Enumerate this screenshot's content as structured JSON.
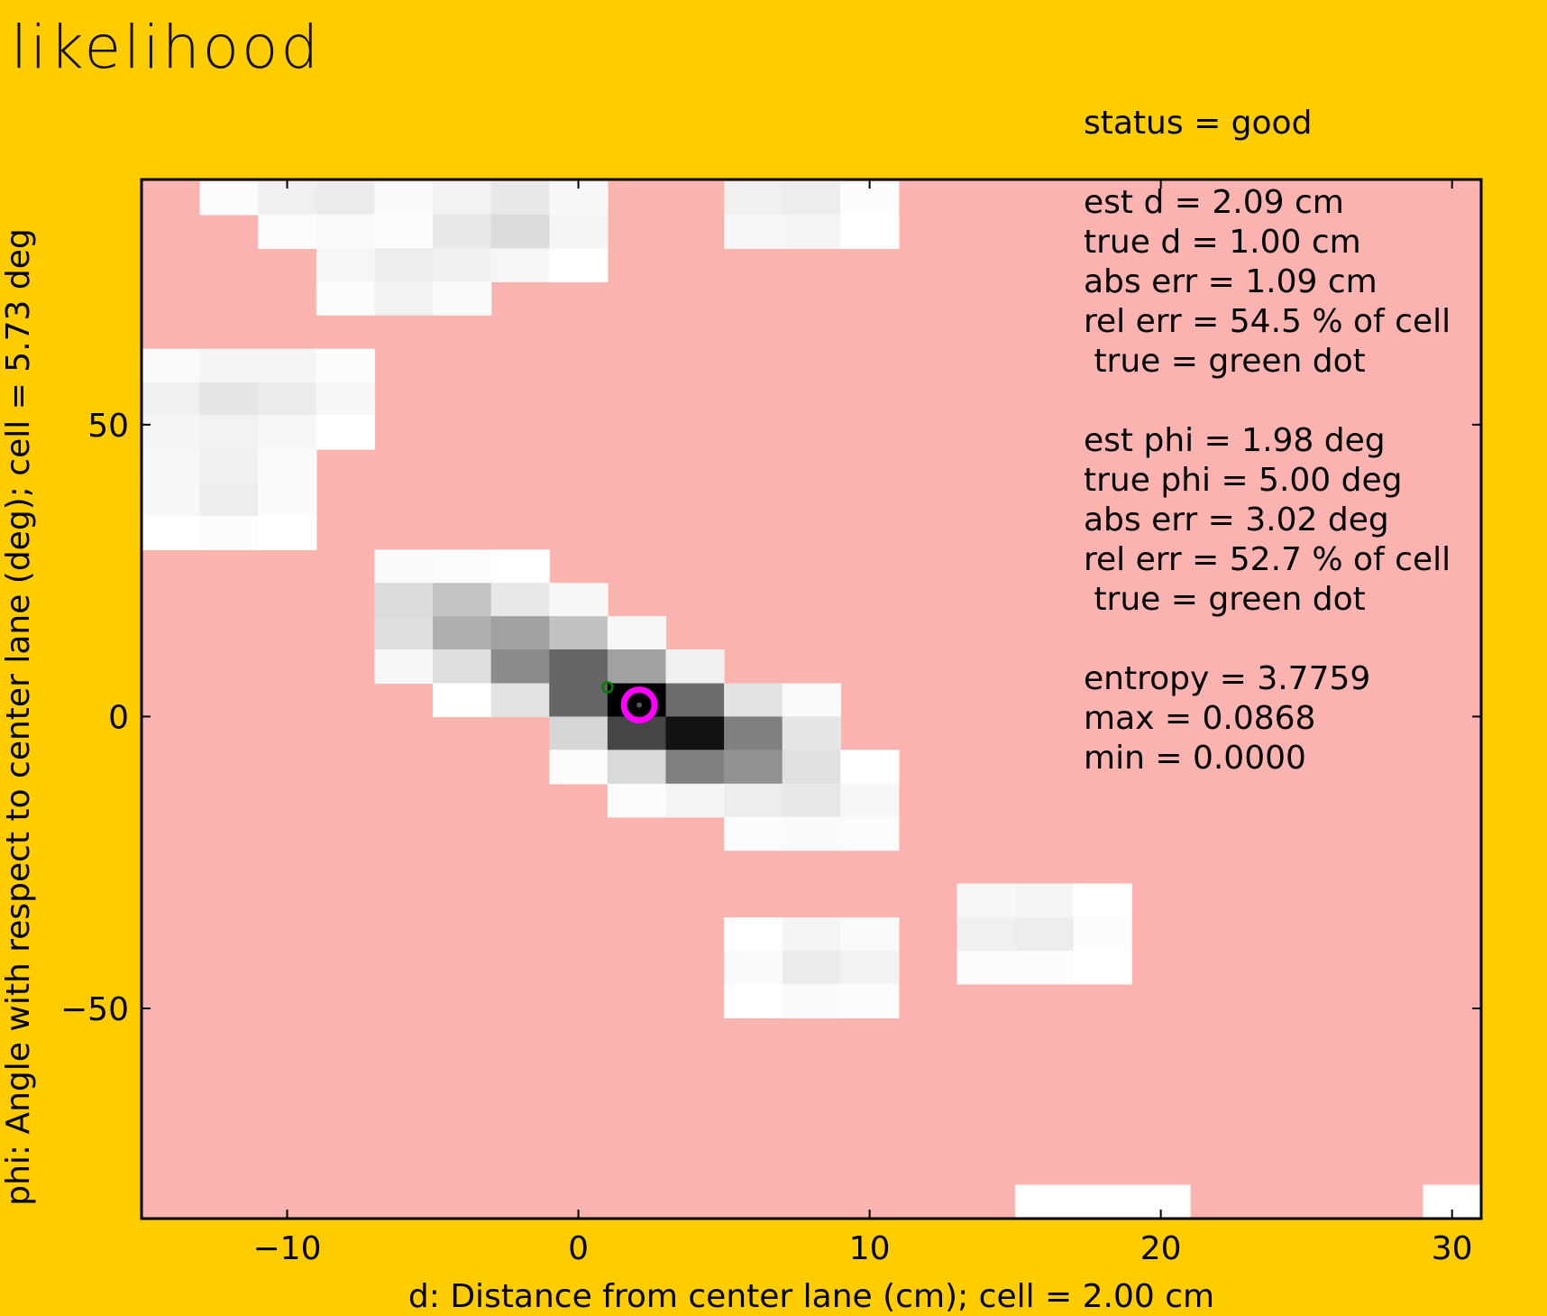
{
  "title": "likelihood",
  "status_line": "status = good",
  "info_lines": [
    "est d = 2.09 cm",
    "true d = 1.00 cm",
    "abs err = 1.09 cm",
    "rel err = 54.5 % of cell",
    " true = green dot",
    "",
    "est phi = 1.98 deg",
    "true phi = 5.00 deg",
    "abs err = 3.02 deg",
    "rel err = 52.7 % of cell",
    " true = green dot",
    "",
    "entropy = 3.7759",
    "max = 0.0868",
    "min = 0.0000"
  ],
  "colors": {
    "background": "#ffcc00",
    "plot_background": "#fab3ae",
    "estimate_marker": "#ff00ff",
    "true_marker": "#008000"
  },
  "chart_data": {
    "type": "heatmap",
    "xlabel": "d: Distance from center lane (cm); cell = 2.00 cm",
    "ylabel": "phi: Angle with respect to center lane (deg); cell = 5.73 deg",
    "xlim": [
      -15,
      31
    ],
    "ylim": [
      -86,
      92
    ],
    "xticks": [
      -10,
      0,
      10,
      20,
      30
    ],
    "xtick_labels": [
      "−10",
      "0",
      "10",
      "20",
      "30"
    ],
    "yticks": [
      50,
      0,
      -50
    ],
    "ytick_labels": [
      "50",
      "0",
      "−50"
    ],
    "cell_width": 2.0,
    "cell_height": 5.73,
    "cells": [
      {
        "x0": -13,
        "x1": -11,
        "y0": 86.0,
        "y1": 91.7,
        "v": 0.01
      },
      {
        "x0": -11,
        "x1": -9,
        "y0": 86.0,
        "y1": 91.7,
        "v": 0.06
      },
      {
        "x0": -9,
        "x1": -7,
        "y0": 86.0,
        "y1": 91.7,
        "v": 0.08
      },
      {
        "x0": -7,
        "x1": -5,
        "y0": 86.0,
        "y1": 91.7,
        "v": 0.02
      },
      {
        "x0": -5,
        "x1": -3,
        "y0": 86.0,
        "y1": 91.7,
        "v": 0.05
      },
      {
        "x0": -3,
        "x1": -1,
        "y0": 86.0,
        "y1": 91.7,
        "v": 0.09
      },
      {
        "x0": -1,
        "x1": 1,
        "y0": 86.0,
        "y1": 91.7,
        "v": 0.03
      },
      {
        "x0": 5,
        "x1": 7,
        "y0": 86.0,
        "y1": 91.7,
        "v": 0.06
      },
      {
        "x0": 7,
        "x1": 9,
        "y0": 86.0,
        "y1": 91.7,
        "v": 0.07
      },
      {
        "x0": 9,
        "x1": 11,
        "y0": 86.0,
        "y1": 91.7,
        "v": 0.01
      },
      {
        "x0": -11,
        "x1": -9,
        "y0": 80.2,
        "y1": 86.0,
        "v": 0.01
      },
      {
        "x0": -9,
        "x1": -7,
        "y0": 80.2,
        "y1": 86.0,
        "v": 0.02
      },
      {
        "x0": -7,
        "x1": -5,
        "y0": 80.2,
        "y1": 86.0,
        "v": 0.01
      },
      {
        "x0": -5,
        "x1": -3,
        "y0": 80.2,
        "y1": 86.0,
        "v": 0.09
      },
      {
        "x0": -3,
        "x1": -1,
        "y0": 80.2,
        "y1": 86.0,
        "v": 0.14
      },
      {
        "x0": -1,
        "x1": 1,
        "y0": 80.2,
        "y1": 86.0,
        "v": 0.04
      },
      {
        "x0": 5,
        "x1": 7,
        "y0": 80.2,
        "y1": 86.0,
        "v": 0.03
      },
      {
        "x0": 7,
        "x1": 9,
        "y0": 80.2,
        "y1": 86.0,
        "v": 0.04
      },
      {
        "x0": 9,
        "x1": 11,
        "y0": 80.2,
        "y1": 86.0,
        "v": 0.0
      },
      {
        "x0": -9,
        "x1": -7,
        "y0": 74.5,
        "y1": 80.2,
        "v": 0.03
      },
      {
        "x0": -7,
        "x1": -5,
        "y0": 74.5,
        "y1": 80.2,
        "v": 0.07
      },
      {
        "x0": -5,
        "x1": -3,
        "y0": 74.5,
        "y1": 80.2,
        "v": 0.06
      },
      {
        "x0": -3,
        "x1": -1,
        "y0": 74.5,
        "y1": 80.2,
        "v": 0.03
      },
      {
        "x0": -1,
        "x1": 1,
        "y0": 74.5,
        "y1": 80.2,
        "v": 0.0
      },
      {
        "x0": -9,
        "x1": -7,
        "y0": 68.8,
        "y1": 74.5,
        "v": 0.01
      },
      {
        "x0": -7,
        "x1": -5,
        "y0": 68.8,
        "y1": 74.5,
        "v": 0.05
      },
      {
        "x0": -5,
        "x1": -3,
        "y0": 68.8,
        "y1": 74.5,
        "v": 0.02
      },
      {
        "x0": -15,
        "x1": -13,
        "y0": 57.3,
        "y1": 63.0,
        "v": 0.02
      },
      {
        "x0": -13,
        "x1": -11,
        "y0": 57.3,
        "y1": 63.0,
        "v": 0.04
      },
      {
        "x0": -11,
        "x1": -9,
        "y0": 57.3,
        "y1": 63.0,
        "v": 0.04
      },
      {
        "x0": -9,
        "x1": -7,
        "y0": 57.3,
        "y1": 63.0,
        "v": 0.01
      },
      {
        "x0": -15,
        "x1": -13,
        "y0": 51.6,
        "y1": 57.3,
        "v": 0.06
      },
      {
        "x0": -13,
        "x1": -11,
        "y0": 51.6,
        "y1": 57.3,
        "v": 0.1
      },
      {
        "x0": -11,
        "x1": -9,
        "y0": 51.6,
        "y1": 57.3,
        "v": 0.08
      },
      {
        "x0": -9,
        "x1": -7,
        "y0": 51.6,
        "y1": 57.3,
        "v": 0.03
      },
      {
        "x0": -15,
        "x1": -13,
        "y0": 45.8,
        "y1": 51.6,
        "v": 0.04
      },
      {
        "x0": -13,
        "x1": -11,
        "y0": 45.8,
        "y1": 51.6,
        "v": 0.05
      },
      {
        "x0": -11,
        "x1": -9,
        "y0": 45.8,
        "y1": 51.6,
        "v": 0.03
      },
      {
        "x0": -9,
        "x1": -7,
        "y0": 45.8,
        "y1": 51.6,
        "v": 0.0
      },
      {
        "x0": -15,
        "x1": -13,
        "y0": 40.1,
        "y1": 45.8,
        "v": 0.03
      },
      {
        "x0": -13,
        "x1": -11,
        "y0": 40.1,
        "y1": 45.8,
        "v": 0.06
      },
      {
        "x0": -11,
        "x1": -9,
        "y0": 40.1,
        "y1": 45.8,
        "v": 0.02
      },
      {
        "x0": -15,
        "x1": -13,
        "y0": 34.4,
        "y1": 40.1,
        "v": 0.03
      },
      {
        "x0": -13,
        "x1": -11,
        "y0": 34.4,
        "y1": 40.1,
        "v": 0.07
      },
      {
        "x0": -11,
        "x1": -9,
        "y0": 34.4,
        "y1": 40.1,
        "v": 0.02
      },
      {
        "x0": -15,
        "x1": -13,
        "y0": 28.6,
        "y1": 34.4,
        "v": 0.0
      },
      {
        "x0": -13,
        "x1": -11,
        "y0": 28.6,
        "y1": 34.4,
        "v": 0.01
      },
      {
        "x0": -11,
        "x1": -9,
        "y0": 28.6,
        "y1": 34.4,
        "v": 0.0
      },
      {
        "x0": -7,
        "x1": -5,
        "y0": 22.9,
        "y1": 28.6,
        "v": 0.02
      },
      {
        "x0": -5,
        "x1": -3,
        "y0": 22.9,
        "y1": 28.6,
        "v": 0.01
      },
      {
        "x0": -3,
        "x1": -1,
        "y0": 22.9,
        "y1": 28.6,
        "v": 0.0
      },
      {
        "x0": -7,
        "x1": -5,
        "y0": 17.2,
        "y1": 22.9,
        "v": 0.14
      },
      {
        "x0": -5,
        "x1": -3,
        "y0": 17.2,
        "y1": 22.9,
        "v": 0.23
      },
      {
        "x0": -3,
        "x1": -1,
        "y0": 17.2,
        "y1": 22.9,
        "v": 0.09
      },
      {
        "x0": -1,
        "x1": 1,
        "y0": 17.2,
        "y1": 22.9,
        "v": 0.03
      },
      {
        "x0": -7,
        "x1": -5,
        "y0": 11.5,
        "y1": 17.2,
        "v": 0.13
      },
      {
        "x0": -5,
        "x1": -3,
        "y0": 11.5,
        "y1": 17.2,
        "v": 0.31
      },
      {
        "x0": -3,
        "x1": -1,
        "y0": 11.5,
        "y1": 17.2,
        "v": 0.37
      },
      {
        "x0": -1,
        "x1": 1,
        "y0": 11.5,
        "y1": 17.2,
        "v": 0.24
      },
      {
        "x0": 1,
        "x1": 3,
        "y0": 11.5,
        "y1": 17.2,
        "v": 0.03
      },
      {
        "x0": -7,
        "x1": -5,
        "y0": 5.7,
        "y1": 11.5,
        "v": 0.03
      },
      {
        "x0": -5,
        "x1": -3,
        "y0": 5.7,
        "y1": 11.5,
        "v": 0.13
      },
      {
        "x0": -3,
        "x1": -1,
        "y0": 5.7,
        "y1": 11.5,
        "v": 0.45
      },
      {
        "x0": -1,
        "x1": 1,
        "y0": 5.7,
        "y1": 11.5,
        "v": 0.6
      },
      {
        "x0": 1,
        "x1": 3,
        "y0": 5.7,
        "y1": 11.5,
        "v": 0.37
      },
      {
        "x0": 3,
        "x1": 5,
        "y0": 5.7,
        "y1": 11.5,
        "v": 0.06
      },
      {
        "x0": -5,
        "x1": -3,
        "y0": 0.0,
        "y1": 5.7,
        "v": 0.0
      },
      {
        "x0": -3,
        "x1": -1,
        "y0": 0.0,
        "y1": 5.7,
        "v": 0.11
      },
      {
        "x0": -1,
        "x1": 1,
        "y0": 0.0,
        "y1": 5.7,
        "v": 0.6
      },
      {
        "x0": 1,
        "x1": 3,
        "y0": 0.0,
        "y1": 5.7,
        "v": 1.0
      },
      {
        "x0": 3,
        "x1": 5,
        "y0": 0.0,
        "y1": 5.7,
        "v": 0.58
      },
      {
        "x0": 5,
        "x1": 7,
        "y0": 0.0,
        "y1": 5.7,
        "v": 0.11
      },
      {
        "x0": 7,
        "x1": 9,
        "y0": 0.0,
        "y1": 5.7,
        "v": 0.02
      },
      {
        "x0": -1,
        "x1": 1,
        "y0": -5.7,
        "y1": 0.0,
        "v": 0.16
      },
      {
        "x0": 1,
        "x1": 3,
        "y0": -5.7,
        "y1": 0.0,
        "v": 0.73
      },
      {
        "x0": 3,
        "x1": 5,
        "y0": -5.7,
        "y1": 0.0,
        "v": 0.93
      },
      {
        "x0": 5,
        "x1": 7,
        "y0": -5.7,
        "y1": 0.0,
        "v": 0.5
      },
      {
        "x0": 7,
        "x1": 9,
        "y0": -5.7,
        "y1": 0.0,
        "v": 0.1
      },
      {
        "x0": -1,
        "x1": 1,
        "y0": -11.5,
        "y1": -5.7,
        "v": 0.01
      },
      {
        "x0": 1,
        "x1": 3,
        "y0": -11.5,
        "y1": -5.7,
        "v": 0.15
      },
      {
        "x0": 3,
        "x1": 5,
        "y0": -11.5,
        "y1": -5.7,
        "v": 0.5
      },
      {
        "x0": 5,
        "x1": 7,
        "y0": -11.5,
        "y1": -5.7,
        "v": 0.43
      },
      {
        "x0": 7,
        "x1": 9,
        "y0": -11.5,
        "y1": -5.7,
        "v": 0.12
      },
      {
        "x0": 9,
        "x1": 11,
        "y0": -11.5,
        "y1": -5.7,
        "v": 0.0
      },
      {
        "x0": 1,
        "x1": 3,
        "y0": -17.2,
        "y1": -11.5,
        "v": 0.01
      },
      {
        "x0": 3,
        "x1": 5,
        "y0": -17.2,
        "y1": -11.5,
        "v": 0.04
      },
      {
        "x0": 5,
        "x1": 7,
        "y0": -17.2,
        "y1": -11.5,
        "v": 0.07
      },
      {
        "x0": 7,
        "x1": 9,
        "y0": -17.2,
        "y1": -11.5,
        "v": 0.09
      },
      {
        "x0": 9,
        "x1": 11,
        "y0": -17.2,
        "y1": -11.5,
        "v": 0.03
      },
      {
        "x0": 5,
        "x1": 7,
        "y0": -22.9,
        "y1": -17.2,
        "v": 0.01
      },
      {
        "x0": 7,
        "x1": 9,
        "y0": -22.9,
        "y1": -17.2,
        "v": 0.02
      },
      {
        "x0": 9,
        "x1": 11,
        "y0": -22.9,
        "y1": -17.2,
        "v": 0.01
      },
      {
        "x0": 13,
        "x1": 15,
        "y0": -34.4,
        "y1": -28.6,
        "v": 0.03
      },
      {
        "x0": 15,
        "x1": 17,
        "y0": -34.4,
        "y1": -28.6,
        "v": 0.04
      },
      {
        "x0": 17,
        "x1": 19,
        "y0": -34.4,
        "y1": -28.6,
        "v": 0.0
      },
      {
        "x0": 13,
        "x1": 15,
        "y0": -40.1,
        "y1": -34.4,
        "v": 0.06
      },
      {
        "x0": 15,
        "x1": 17,
        "y0": -40.1,
        "y1": -34.4,
        "v": 0.07
      },
      {
        "x0": 17,
        "x1": 19,
        "y0": -40.1,
        "y1": -34.4,
        "v": 0.01
      },
      {
        "x0": 13,
        "x1": 15,
        "y0": -45.8,
        "y1": -40.1,
        "v": 0.01
      },
      {
        "x0": 15,
        "x1": 17,
        "y0": -45.8,
        "y1": -40.1,
        "v": 0.01
      },
      {
        "x0": 17,
        "x1": 19,
        "y0": -45.8,
        "y1": -40.1,
        "v": 0.0
      },
      {
        "x0": 5,
        "x1": 7,
        "y0": -40.1,
        "y1": -34.4,
        "v": 0.0
      },
      {
        "x0": 7,
        "x1": 9,
        "y0": -40.1,
        "y1": -34.4,
        "v": 0.04
      },
      {
        "x0": 9,
        "x1": 11,
        "y0": -40.1,
        "y1": -34.4,
        "v": 0.02
      },
      {
        "x0": 5,
        "x1": 7,
        "y0": -45.8,
        "y1": -40.1,
        "v": 0.02
      },
      {
        "x0": 7,
        "x1": 9,
        "y0": -45.8,
        "y1": -40.1,
        "v": 0.08
      },
      {
        "x0": 9,
        "x1": 11,
        "y0": -45.8,
        "y1": -40.1,
        "v": 0.05
      },
      {
        "x0": 5,
        "x1": 7,
        "y0": -51.6,
        "y1": -45.8,
        "v": 0.0
      },
      {
        "x0": 7,
        "x1": 9,
        "y0": -51.6,
        "y1": -45.8,
        "v": 0.02
      },
      {
        "x0": 9,
        "x1": 11,
        "y0": -51.6,
        "y1": -45.8,
        "v": 0.01
      },
      {
        "x0": 15,
        "x1": 17,
        "y0": -86.0,
        "y1": -80.2,
        "v": 0.0
      },
      {
        "x0": 17,
        "x1": 19,
        "y0": -86.0,
        "y1": -80.2,
        "v": 0.0
      },
      {
        "x0": 19,
        "x1": 21,
        "y0": -86.0,
        "y1": -80.2,
        "v": 0.0
      },
      {
        "x0": 29,
        "x1": 31,
        "y0": -86.0,
        "y1": -80.2,
        "v": 0.0
      }
    ],
    "estimate": {
      "d": 2.09,
      "phi": 1.98
    },
    "truth": {
      "d": 1.0,
      "phi": 5.0
    }
  }
}
